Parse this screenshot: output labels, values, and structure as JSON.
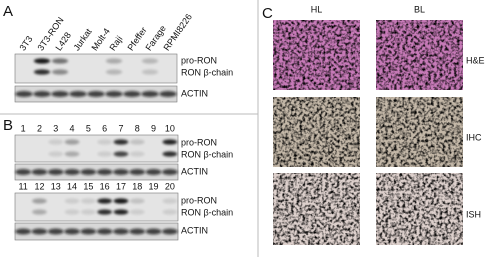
{
  "panels": {
    "a": {
      "label": "A",
      "lanes": [
        "3T3",
        "3T3-RON",
        "L428",
        "Jurkat",
        "Molt-4",
        "Raji",
        "Pfeffer",
        "Farage",
        "RPMI8226"
      ],
      "bands": [
        "pro-RON",
        "RON β-chain"
      ],
      "loading": "ACTIN"
    },
    "b": {
      "label": "B",
      "lanes_top": [
        1,
        2,
        3,
        4,
        5,
        6,
        7,
        8,
        9,
        10
      ],
      "lanes_bottom": [
        11,
        12,
        13,
        14,
        15,
        16,
        17,
        18,
        19,
        20
      ],
      "bands": [
        "pro-RON",
        "RON β-chain"
      ],
      "loading": "ACTIN"
    },
    "c": {
      "label": "C",
      "columns": [
        "HL",
        "BL"
      ],
      "rows": [
        "H&E",
        "IHC",
        "ISH"
      ]
    }
  }
}
